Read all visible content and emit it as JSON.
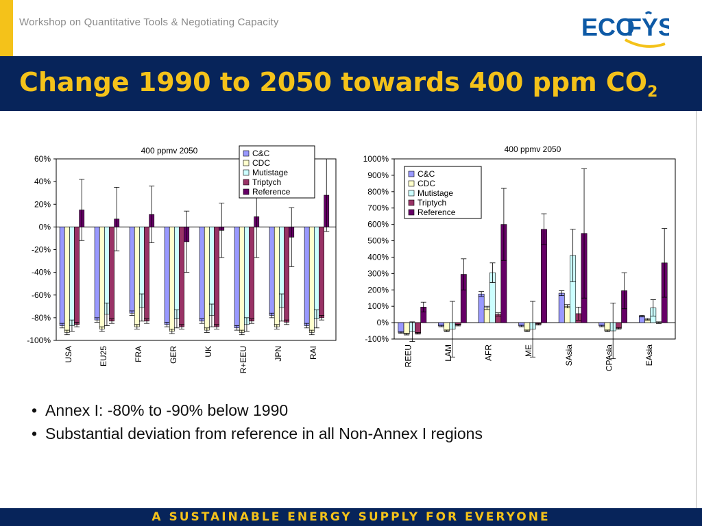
{
  "header": {
    "workshop_title": "Workshop on Quantitative Tools & Negotiating Capacity",
    "logo_text_eco": "ECO",
    "logo_text_fys": "FYS",
    "slide_title": "Change 1990 to 2050 towards 400 ppm CO",
    "slide_title_sub": "2"
  },
  "bullets": [
    {
      "text": "Annex I: -80% to -90% below 1990"
    },
    {
      "text": "Substantial deviation from reference in all Non-Annex I regions"
    }
  ],
  "footer": {
    "tagline": "A SUSTAINABLE ENERGY SUPPLY FOR EVERYONE"
  },
  "colors": {
    "navy": "#07245a",
    "yellow": "#f4c21a",
    "grey_text": "#8a8a8a"
  },
  "chart_data": [
    {
      "type": "bar",
      "title": "400 ppmv 2050",
      "categories": [
        "USA",
        "EU25",
        "FRA",
        "GER",
        "UK",
        "R+EEU",
        "JPN",
        "RAI"
      ],
      "ylim": [
        -100,
        60
      ],
      "yticks": [
        60,
        40,
        20,
        0,
        -20,
        -40,
        -60,
        -80,
        -100
      ],
      "ytick_labels": [
        "60%",
        "40%",
        "20%",
        "0%",
        "-20%",
        "-40%",
        "-60%",
        "-80%",
        "-100%"
      ],
      "legend_position": "top-right",
      "series": [
        {
          "name": "C&C",
          "color": "#9999ff",
          "values": [
            -87,
            -82,
            -76,
            -86,
            -83,
            -89,
            -78,
            -87
          ],
          "err": [
            2,
            2,
            2,
            2,
            2,
            2,
            2,
            2
          ]
        },
        {
          "name": "CDC",
          "color": "#ffffcc",
          "values": [
            -93,
            -90,
            -88,
            -92,
            -91,
            -93,
            -88,
            -93
          ],
          "err": [
            2,
            2,
            2,
            2,
            2,
            2,
            2,
            2
          ]
        },
        {
          "name": "Mutistage",
          "color": "#ccffff",
          "values": [
            -87,
            -77,
            -71,
            -81,
            -78,
            -86,
            -71,
            -81
          ],
          "err": [
            5,
            10,
            12,
            8,
            10,
            6,
            12,
            8
          ]
        },
        {
          "name": "Triptych",
          "color": "#993366",
          "values": [
            -86,
            -83,
            -83,
            -88,
            -88,
            -83,
            -84,
            -80
          ],
          "err": [
            2,
            2,
            2,
            2,
            2,
            2,
            2,
            2
          ]
        },
        {
          "name": "Reference",
          "color": "#660066",
          "values": [
            15,
            7,
            11,
            -13,
            -3,
            9,
            -9,
            28
          ],
          "err": [
            27,
            28,
            25,
            27,
            24,
            36,
            26,
            32
          ]
        }
      ]
    },
    {
      "type": "bar",
      "title": "400 ppmv 2050",
      "categories": [
        "REEU",
        "LAM",
        "AFR",
        "ME",
        "SAsia",
        "CPAsia",
        "EAsia"
      ],
      "ylim": [
        -100,
        1000
      ],
      "yticks": [
        1000,
        900,
        800,
        700,
        600,
        500,
        400,
        300,
        200,
        100,
        0,
        -100
      ],
      "ytick_labels": [
        "1000%",
        "900%",
        "800%",
        "700%",
        "600%",
        "500%",
        "400%",
        "300%",
        "200%",
        "100%",
        "0%",
        "-100%"
      ],
      "legend_position": "top-left",
      "series": [
        {
          "name": "C&C",
          "color": "#9999ff",
          "values": [
            -60,
            -20,
            175,
            -20,
            180,
            -20,
            40
          ],
          "err": [
            5,
            5,
            15,
            5,
            15,
            5,
            5
          ]
        },
        {
          "name": "CDC",
          "color": "#ffffcc",
          "values": [
            -70,
            -50,
            90,
            -50,
            100,
            -50,
            20
          ],
          "err": [
            5,
            5,
            10,
            5,
            10,
            5,
            5
          ]
        },
        {
          "name": "Mutistage",
          "color": "#ccffff",
          "values": [
            -55,
            -40,
            305,
            -40,
            410,
            -50,
            90
          ],
          "err": [
            60,
            170,
            60,
            170,
            160,
            170,
            50
          ]
        },
        {
          "name": "Triptych",
          "color": "#993366",
          "values": [
            -65,
            -15,
            50,
            -10,
            55,
            -35,
            0
          ],
          "err": [
            5,
            5,
            10,
            5,
            40,
            5,
            5
          ]
        },
        {
          "name": "Reference",
          "color": "#660066",
          "values": [
            95,
            295,
            600,
            570,
            545,
            195,
            365
          ],
          "err": [
            30,
            95,
            220,
            95,
            395,
            110,
            210
          ]
        }
      ]
    }
  ]
}
